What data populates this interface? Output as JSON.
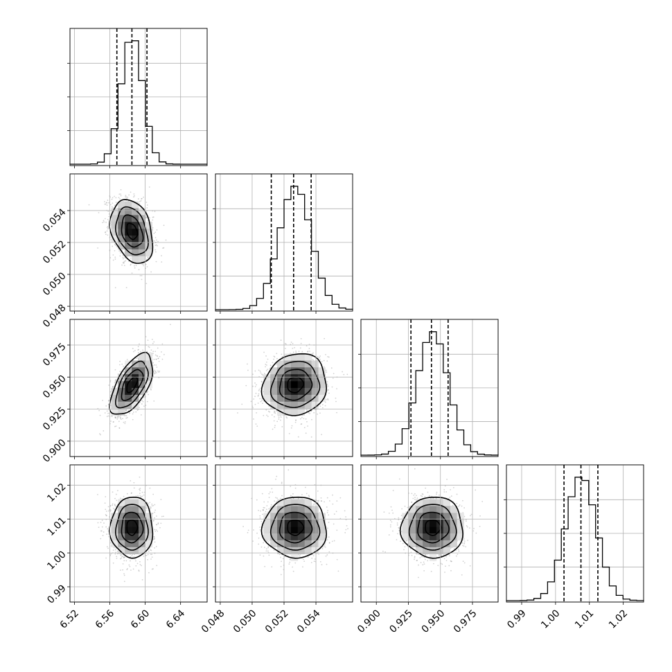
{
  "chart_data": {
    "type": "corner",
    "parameters": [
      {
        "ticks": [
          6.52,
          6.56,
          6.6,
          6.64
        ],
        "tick_labels": [
          "6.52",
          "6.56",
          "6.60",
          "6.64"
        ],
        "range": [
          6.515,
          6.67
        ],
        "mean": 6.585,
        "sd": 0.012,
        "quantiles": [
          6.568,
          6.585,
          6.602
        ]
      },
      {
        "ticks": [
          0.048,
          0.05,
          0.052,
          0.054
        ],
        "tick_labels": [
          "0.048",
          "0.050",
          "0.052",
          "0.054"
        ],
        "range": [
          0.0477,
          0.0563
        ],
        "mean": 0.0527,
        "sd": 0.001,
        "quantiles": [
          0.0512,
          0.0526,
          0.0537
        ]
      },
      {
        "ticks": [
          0.9,
          0.925,
          0.95,
          0.975
        ],
        "tick_labels": [
          "0.900",
          "0.925",
          "0.950",
          "0.975"
        ],
        "range": [
          0.888,
          0.995
        ],
        "mean": 0.944,
        "sd": 0.012,
        "quantiles": [
          0.927,
          0.943,
          0.956
        ]
      },
      {
        "ticks": [
          0.99,
          1.0,
          1.01,
          1.02
        ],
        "tick_labels": [
          "0.99",
          "1.00",
          "1.01",
          "1.02"
        ],
        "range": [
          0.9855,
          1.026
        ],
        "mean": 1.0075,
        "sd": 0.0045,
        "quantiles": [
          1.0025,
          1.0075,
          1.0125
        ]
      }
    ],
    "correlations": {
      "1-0": -0.3,
      "2-0": 0.6,
      "2-1": 0.1,
      "3-0": 0.0,
      "3-1": 0.0,
      "3-2": 0.0
    },
    "histogram_bins": 20,
    "contour_levels": [
      0.5,
      1.0,
      1.5,
      2.0
    ],
    "grid": true,
    "xlabel": "",
    "ylabel": "",
    "title": ""
  }
}
